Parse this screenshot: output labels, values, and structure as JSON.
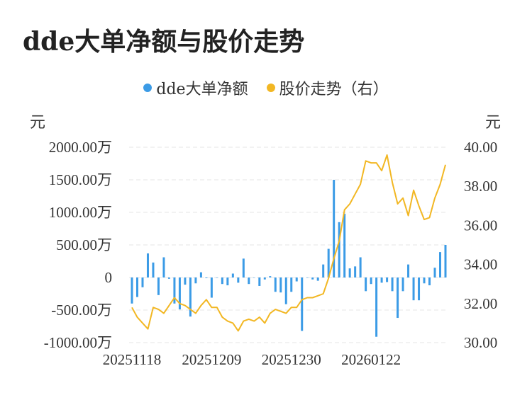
{
  "title": "dde大单净额与股价走势",
  "chart_data": {
    "type": "bar+line",
    "legend": [
      {
        "name": "dde大单净额",
        "color": "#3b9be6"
      },
      {
        "name": "股价走势（右）",
        "color": "#f2b723"
      }
    ],
    "left_unit": "元",
    "right_unit": "元",
    "y_left": {
      "min": -1000,
      "max": 2000,
      "ticks": [
        2000,
        1500,
        1000,
        500,
        0,
        -500,
        -1000
      ],
      "tick_labels": [
        "2000.00万",
        "1500.00万",
        "1000.00万",
        "500.00万",
        "0",
        "-500.00万",
        "-1000.00万"
      ]
    },
    "y_right": {
      "min": 30,
      "max": 40,
      "ticks": [
        40,
        38,
        36,
        34,
        32,
        30
      ],
      "tick_labels": [
        "40.00",
        "38.00",
        "36.00",
        "34.00",
        "32.00",
        "30.00"
      ]
    },
    "x_tick_labels": [
      {
        "index": 0,
        "label": "20251118"
      },
      {
        "index": 15,
        "label": "20251209"
      },
      {
        "index": 30,
        "label": "20251230"
      },
      {
        "index": 45,
        "label": "20260122"
      }
    ],
    "bar_values": [
      -400,
      -300,
      -150,
      370,
      230,
      -270,
      310,
      -20,
      -400,
      -490,
      -110,
      -600,
      -90,
      80,
      -10,
      -310,
      0,
      -100,
      -120,
      60,
      -80,
      290,
      -100,
      0,
      -130,
      -30,
      20,
      -220,
      -230,
      -410,
      -220,
      -60,
      -820,
      0,
      -30,
      -50,
      200,
      440,
      1500,
      850,
      980,
      140,
      170,
      310,
      -210,
      -100,
      -910,
      -80,
      -70,
      -210,
      -620,
      -210,
      200,
      -350,
      -350,
      -90,
      -120,
      150,
      390,
      500
    ],
    "line_values": [
      31.8,
      31.3,
      31.0,
      30.7,
      31.8,
      31.7,
      31.5,
      31.9,
      32.3,
      32.0,
      31.9,
      31.7,
      31.5,
      31.9,
      32.2,
      31.8,
      31.8,
      31.3,
      31.1,
      31.0,
      30.6,
      31.1,
      31.2,
      31.1,
      31.3,
      31.0,
      31.5,
      31.7,
      31.6,
      31.5,
      31.8,
      31.8,
      32.2,
      32.3,
      32.3,
      32.4,
      32.5,
      33.3,
      34.3,
      35.2,
      36.8,
      37.1,
      37.6,
      38.1,
      39.3,
      39.2,
      39.2,
      38.8,
      39.6,
      38.2,
      37.1,
      37.4,
      36.5,
      37.8,
      37.0,
      36.3,
      36.4,
      37.4,
      38.1,
      39.1
    ]
  }
}
